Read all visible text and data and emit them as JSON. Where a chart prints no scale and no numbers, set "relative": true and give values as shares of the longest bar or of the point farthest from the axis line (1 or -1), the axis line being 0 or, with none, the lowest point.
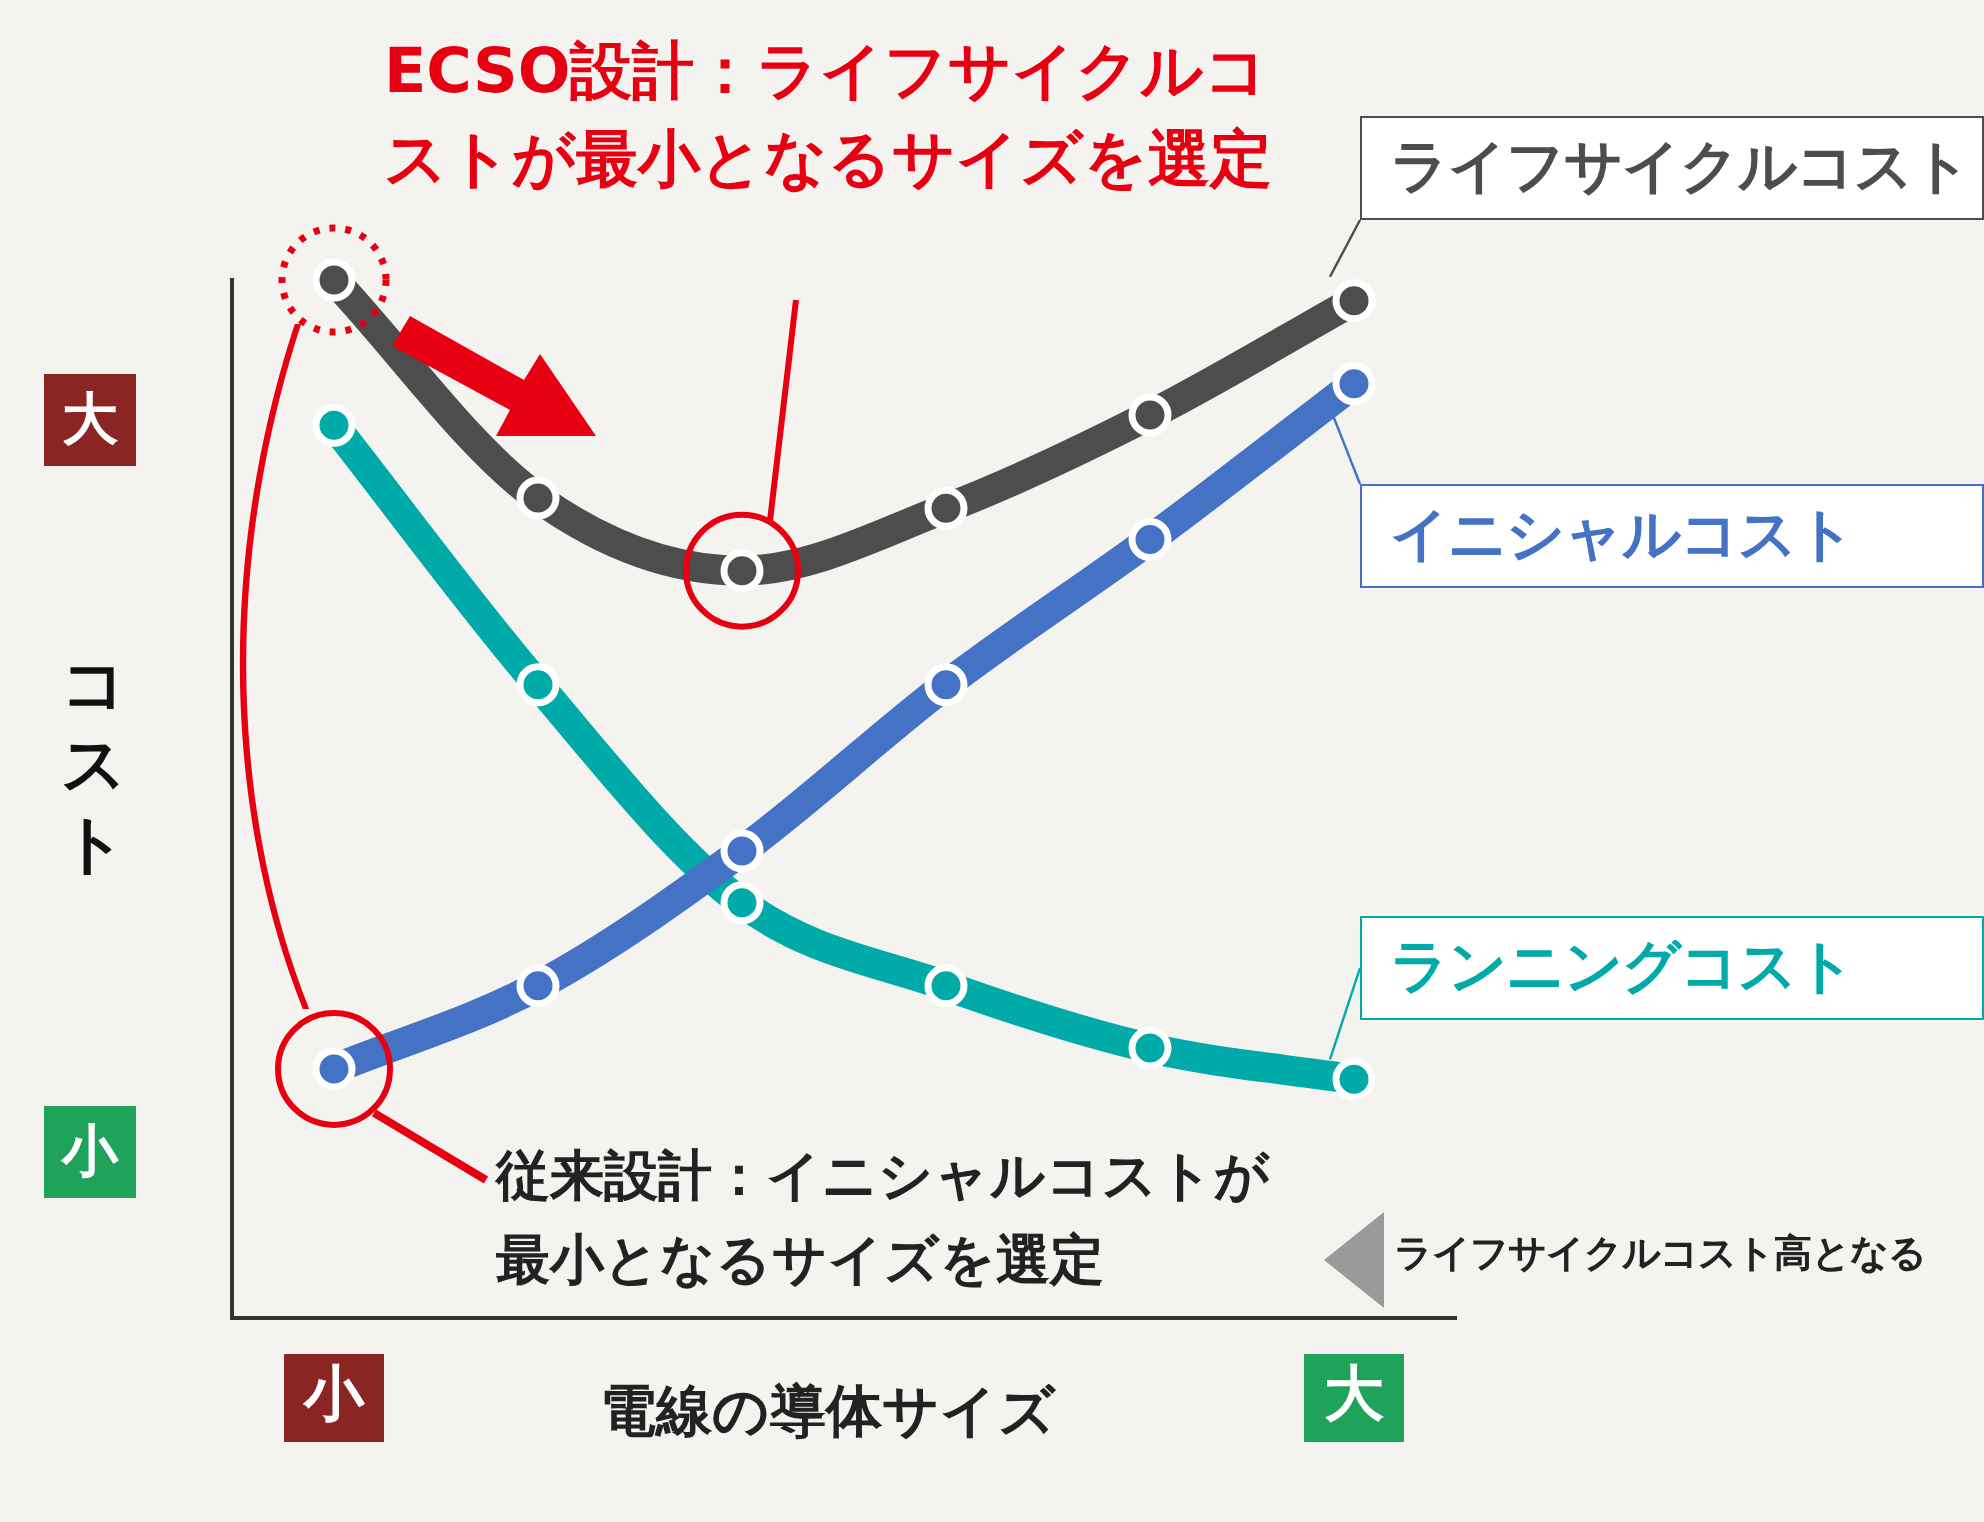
{
  "chart_data": {
    "type": "line",
    "relative": true,
    "tick_labels": "x",
    "xlabel": "電線の導体サイズ",
    "ylabel": "コスト",
    "categories": [
      "小",
      null,
      null,
      null,
      null,
      "大"
    ],
    "series": [
      {
        "name": "ライフサイクルコスト",
        "color": "#4d4d4d",
        "values": [
          1,
          0.79,
          0.72,
          0.78,
          0.87,
          0.98
        ]
      },
      {
        "name": "イニシャルコスト",
        "color": "#4472c4",
        "values": [
          0.24,
          0.32,
          0.45,
          0.61,
          0.75,
          0.9
        ]
      },
      {
        "name": "ランニングコスト",
        "color": "#00aaa8",
        "values": [
          0.86,
          0.61,
          0.4,
          0.32,
          0.26,
          0.23
        ]
      }
    ],
    "annotations": [
      "ECSO設計：ライフサイクルコストが最小となるサイズを選定",
      "従来設計：イニシャルコストが最小となるサイズを選定",
      "ライフサイクルコスト高となる",
      "大",
      "小"
    ],
    "marker": "circle",
    "line_style": "solid",
    "grid": false,
    "legend": "right"
  }
}
